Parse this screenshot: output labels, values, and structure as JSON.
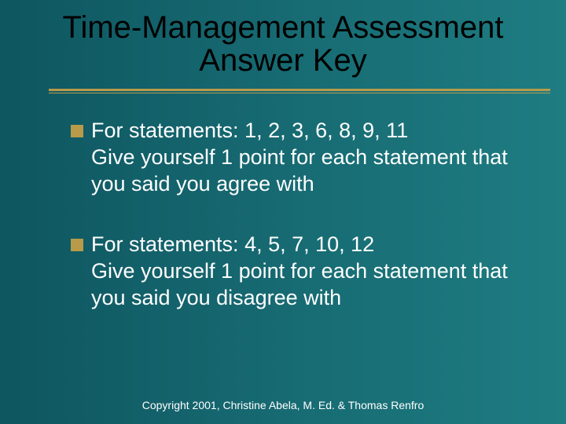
{
  "slide": {
    "title_line1": "Time-Management Assessment",
    "title_line2": "Answer Key",
    "title_color": "#000000",
    "title_fontsize": 40,
    "background_gradient": {
      "from": "#0e5660",
      "mid": "#176a72",
      "to": "#1e7d82"
    },
    "accent_color": "#b89a4a",
    "body_color": "#ffffff",
    "body_fontsize": 27,
    "bullets": [
      {
        "lead": "For statements:  1, 2, 3, 6, 8, 9, 11",
        "rest": "Give yourself 1 point for each statement that you said you agree with"
      },
      {
        "lead": "For statements: 4, 5, 7, 10, 12",
        "rest": "Give yourself 1 point for each statement that you said you disagree with"
      }
    ],
    "footer": "Copyright 2001, Christine Abela, M. Ed. & Thomas Renfro",
    "footer_fontsize": 14
  }
}
